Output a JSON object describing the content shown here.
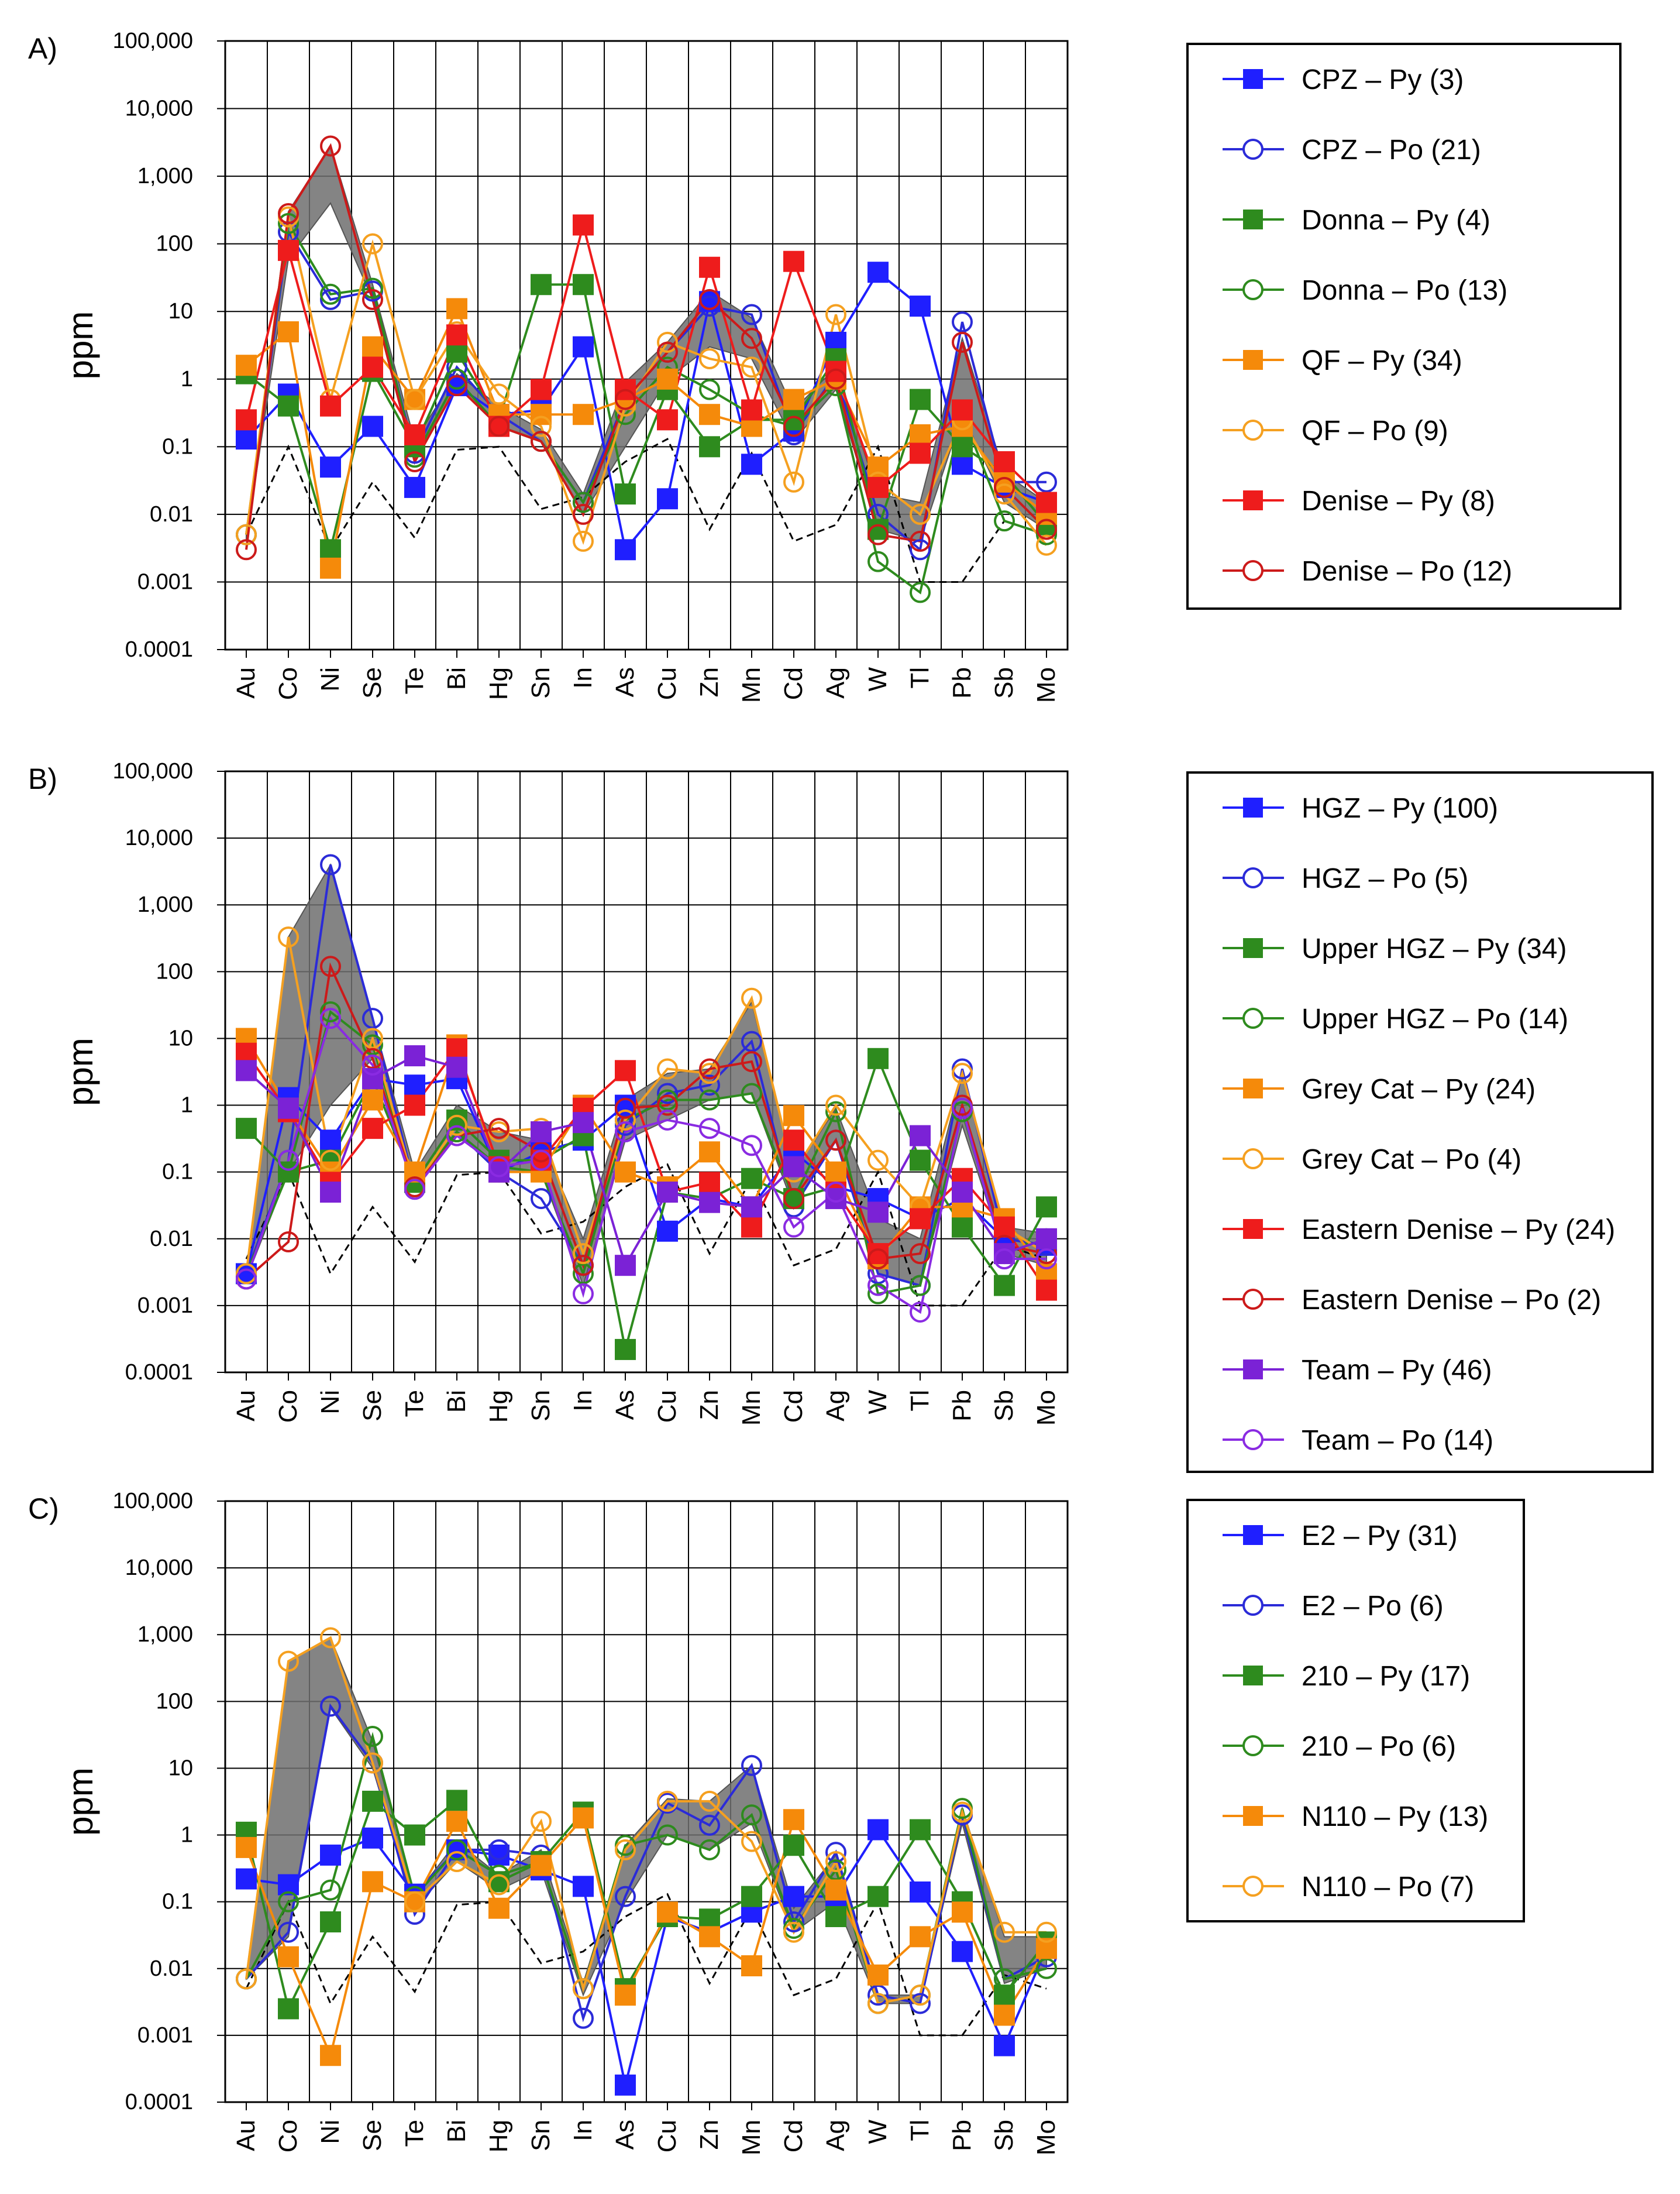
{
  "figure": {
    "elements": [
      "Au",
      "Co",
      "Ni",
      "Se",
      "Te",
      "Bi",
      "Hg",
      "Sn",
      "In",
      "As",
      "Cu",
      "Zn",
      "Mn",
      "Cd",
      "Ag",
      "W",
      "Tl",
      "Pb",
      "Sb",
      "Mo"
    ],
    "ylabel": "ppm",
    "yticks": [
      {
        "v": 100000,
        "label": "100,000"
      },
      {
        "v": 10000,
        "label": "10,000"
      },
      {
        "v": 1000,
        "label": "1,000"
      },
      {
        "v": 100,
        "label": "100"
      },
      {
        "v": 10,
        "label": "10"
      },
      {
        "v": 1,
        "label": "1"
      },
      {
        "v": 0.1,
        "label": "0.1"
      },
      {
        "v": 0.01,
        "label": "0.01"
      },
      {
        "v": 0.001,
        "label": "0.001"
      },
      {
        "v": 0.0001,
        "label": "0.0001"
      }
    ],
    "ylim": [
      0.0001,
      100000
    ],
    "reference_line": [
      0.004,
      0.1,
      0.003,
      0.002,
      0.03,
      0.0045,
      0.09,
      0.1,
      0.012,
      0.018,
      0.06,
      0.0008,
      0.13,
      0.006,
      0.08,
      0.004,
      0.007,
      0.1,
      0.004,
      0.02,
      0.001,
      0.001,
      0.008,
      0.005
    ],
    "reference_line_note": "dashed black line, values per element index (Au..Mo) with intermediate points"
  },
  "chart_data": [
    {
      "type": "line",
      "panel_label": "A)",
      "yscale": "log",
      "categories": [
        "Au",
        "Co",
        "Ni",
        "Se",
        "Te",
        "Bi",
        "Hg",
        "Sn",
        "In",
        "As",
        "Cu",
        "Zn",
        "Mn",
        "Cd",
        "Ag",
        "W",
        "Tl",
        "Pb",
        "Sb",
        "Mo"
      ],
      "reference": [
        0.005,
        0.1,
        0.003,
        0.03,
        0.0045,
        0.09,
        0.1,
        0.012,
        0.018,
        0.06,
        0.13,
        0.006,
        0.08,
        0.004,
        0.007,
        0.1,
        0.001,
        0.001,
        0.008,
        0.005
      ],
      "band": {
        "low": [
          0.004,
          60,
          400,
          15,
          0.06,
          0.8,
          0.2,
          0.12,
          0.01,
          0.1,
          1.0,
          3,
          2,
          0.12,
          0.7,
          0.006,
          0.004,
          0.3,
          0.015,
          0.006
        ],
        "high": [
          0.005,
          300,
          2800,
          25,
          0.12,
          1.2,
          0.4,
          0.18,
          0.02,
          0.9,
          3.5,
          20,
          8,
          0.35,
          1.5,
          0.02,
          0.015,
          4,
          0.04,
          0.015
        ]
      },
      "series": [
        {
          "name": "CPZ – Py (3)",
          "color": "#1f1fff",
          "marker": "square",
          "values": [
            0.13,
            0.6,
            0.05,
            0.2,
            0.025,
            0.8,
            0.3,
            0.35,
            3,
            0.003,
            0.017,
            14,
            0.055,
            0.17,
            3.5,
            38,
            12,
            0.055,
            0.025,
            0.015
          ]
        },
        {
          "name": "CPZ – Po (21)",
          "color": "#2b2bd8",
          "marker": "circle",
          "values": [
            0.005,
            150,
            15,
            20,
            0.08,
            1.5,
            0.3,
            0.12,
            0.015,
            0.5,
            2.5,
            12,
            9,
            0.15,
            1.2,
            0.01,
            0.003,
            7,
            0.03,
            0.03
          ]
        },
        {
          "name": "Donna – Py (4)",
          "color": "#2e8b1e",
          "marker": "square",
          "values": [
            1.2,
            0.4,
            0.003,
            1.3,
            0.1,
            2.5,
            0.25,
            25,
            25,
            0.02,
            0.7,
            0.1,
            0.25,
            0.25,
            2,
            0.006,
            0.5,
            0.1,
            0.04,
            0.007
          ]
        },
        {
          "name": "Donna – Po (13)",
          "color": "#2e8b1e",
          "marker": "circle",
          "values": [
            0.005,
            200,
            18,
            22,
            0.07,
            1.0,
            0.2,
            0.12,
            0.015,
            0.3,
            1.5,
            0.7,
            0.3,
            0.2,
            0.8,
            0.002,
            0.0007,
            0.3,
            0.008,
            0.005
          ]
        },
        {
          "name": "QF – Py (34)",
          "color": "#f58a0a",
          "marker": "square",
          "values": [
            1.6,
            5,
            0.0016,
            3,
            0.5,
            11,
            0.3,
            0.3,
            0.3,
            0.5,
            1.0,
            0.3,
            0.2,
            0.5,
            1.0,
            0.05,
            0.15,
            0.2,
            0.03,
            0.01
          ]
        },
        {
          "name": "QF – Po (9)",
          "color": "#f5a020",
          "marker": "circle",
          "values": [
            0.005,
            250,
            0.5,
            100,
            0.5,
            5,
            0.6,
            0.2,
            0.004,
            0.4,
            3.5,
            2,
            1.5,
            0.03,
            9,
            0.03,
            0.01,
            0.25,
            0.02,
            0.0035
          ]
        },
        {
          "name": "Denise – Py (8)",
          "color": "#ee1c1c",
          "marker": "square",
          "values": [
            0.25,
            80,
            0.4,
            1.5,
            0.15,
            4.5,
            0.2,
            0.7,
            190,
            0.7,
            0.25,
            45,
            0.35,
            55,
            1.3,
            0.025,
            0.08,
            0.35,
            0.06,
            0.015
          ]
        },
        {
          "name": "Denise – Po (12)",
          "color": "#cc1a1a",
          "marker": "circle",
          "values": [
            0.003,
            280,
            2800,
            15,
            0.06,
            0.8,
            0.2,
            0.12,
            0.01,
            0.5,
            2.5,
            15,
            4,
            0.2,
            1.0,
            0.005,
            0.004,
            3.5,
            0.025,
            0.006
          ]
        }
      ]
    },
    {
      "type": "line",
      "panel_label": "B)",
      "yscale": "log",
      "categories": [
        "Au",
        "Co",
        "Ni",
        "Se",
        "Te",
        "Bi",
        "Hg",
        "Sn",
        "In",
        "As",
        "Cu",
        "Zn",
        "Mn",
        "Cd",
        "Ag",
        "W",
        "Tl",
        "Pb",
        "Sb",
        "Mo"
      ],
      "reference": [
        0.005,
        0.1,
        0.003,
        0.03,
        0.0045,
        0.09,
        0.1,
        0.012,
        0.018,
        0.06,
        0.13,
        0.006,
        0.08,
        0.004,
        0.007,
        0.1,
        0.001,
        0.001,
        0.008,
        0.005
      ],
      "band": {
        "low": [
          0.0025,
          0.1,
          1,
          5,
          0.06,
          0.4,
          0.1,
          0.1,
          0.002,
          0.3,
          0.6,
          1.2,
          1.5,
          0.03,
          0.3,
          0.003,
          0.002,
          0.5,
          0.006,
          0.004
        ],
        "high": [
          0.003,
          330,
          4000,
          20,
          0.1,
          1.0,
          0.4,
          0.3,
          0.01,
          1.2,
          3.0,
          3.5,
          35,
          0.1,
          0.9,
          0.02,
          0.01,
          3,
          0.015,
          0.012
        ]
      },
      "series": [
        {
          "name": "HGZ – Py (100)",
          "color": "#1f1fff",
          "marker": "square",
          "values": [
            0.003,
            1.3,
            0.3,
            2.5,
            2,
            2.5,
            0.1,
            0.2,
            0.3,
            1.0,
            0.013,
            0.04,
            0.03,
            0.2,
            0.06,
            0.04,
            0.02,
            0.04,
            0.01,
            0.008
          ]
        },
        {
          "name": "HGZ – Po (5)",
          "color": "#2b2bd8",
          "marker": "circle",
          "values": [
            0.003,
            0.15,
            4000,
            20,
            0.06,
            0.4,
            0.1,
            0.04,
            0.004,
            0.5,
            1.5,
            2,
            9,
            0.03,
            0.3,
            0.003,
            0.002,
            3.5,
            0.01,
            0.008
          ]
        },
        {
          "name": "Upper HGZ – Py (34)",
          "color": "#2e8b1e",
          "marker": "square",
          "values": [
            0.45,
            0.1,
            0.15,
            2.5,
            0.07,
            0.6,
            0.15,
            0.15,
            0.35,
            0.00022,
            0.05,
            0.04,
            0.08,
            0.04,
            0.06,
            5,
            0.15,
            0.015,
            0.002,
            0.03
          ]
        },
        {
          "name": "Upper HGZ – Po (14)",
          "color": "#2e8b1e",
          "marker": "circle",
          "values": [
            0.003,
            0.1,
            25,
            8,
            0.06,
            0.4,
            0.12,
            0.1,
            0.003,
            0.6,
            1.2,
            1.2,
            1.5,
            0.04,
            0.8,
            0.0015,
            0.002,
            0.8,
            0.006,
            0.01
          ]
        },
        {
          "name": "Grey Cat – Py (24)",
          "color": "#f58a0a",
          "marker": "square",
          "values": [
            10,
            0.9,
            0.1,
            1.2,
            0.1,
            8,
            0.1,
            0.1,
            1,
            0.1,
            0.06,
            0.2,
            0.03,
            0.7,
            0.1,
            0.005,
            0.03,
            0.03,
            0.02,
            0.003
          ]
        },
        {
          "name": "Grey Cat – Po (4)",
          "color": "#f5a020",
          "marker": "circle",
          "values": [
            0.003,
            330,
            0.15,
            10,
            0.06,
            0.5,
            0.4,
            0.45,
            0.006,
            0.6,
            3.5,
            3,
            40,
            0.1,
            1,
            0.15,
            0.03,
            3,
            0.015,
            0.006
          ]
        },
        {
          "name": "Eastern Denise – Py (24)",
          "color": "#ee1c1c",
          "marker": "square",
          "values": [
            6,
            0.8,
            0.07,
            0.45,
            1,
            7,
            0.12,
            0.15,
            0.9,
            3.3,
            0.05,
            0.07,
            0.015,
            0.3,
            0.05,
            0.006,
            0.02,
            0.08,
            0.015,
            0.0017
          ]
        },
        {
          "name": "Eastern Denise – Po (2)",
          "color": "#cc1a1a",
          "marker": "circle",
          "values": [
            0.0025,
            0.009,
            120,
            5,
            0.06,
            0.35,
            0.45,
            0.2,
            0.004,
            0.9,
            1,
            3.5,
            4.5,
            0.04,
            0.3,
            0.005,
            0.006,
            1,
            0.008,
            0.006
          ]
        },
        {
          "name": "Team – Py (46)",
          "color": "#7b22d6",
          "marker": "square",
          "values": [
            3.3,
            0.9,
            0.05,
            2.5,
            5.5,
            3.7,
            0.1,
            0.4,
            0.55,
            0.004,
            0.05,
            0.035,
            0.03,
            0.12,
            0.04,
            0.025,
            0.35,
            0.05,
            0.006,
            0.01
          ]
        },
        {
          "name": "Team – Po (14)",
          "color": "#8a2be2",
          "marker": "circle",
          "values": [
            0.0025,
            0.15,
            20,
            4,
            0.055,
            0.35,
            0.12,
            0.15,
            0.0015,
            0.4,
            0.6,
            0.45,
            0.25,
            0.015,
            0.05,
            0.002,
            0.0008,
            0.9,
            0.005,
            0.005
          ]
        }
      ]
    },
    {
      "type": "line",
      "panel_label": "C)",
      "yscale": "log",
      "categories": [
        "Au",
        "Co",
        "Ni",
        "Se",
        "Te",
        "Bi",
        "Hg",
        "Sn",
        "In",
        "As",
        "Cu",
        "Zn",
        "Mn",
        "Cd",
        "Ag",
        "W",
        "Tl",
        "Pb",
        "Sb",
        "Mo"
      ],
      "reference": [
        0.005,
        0.1,
        0.003,
        0.03,
        0.0045,
        0.09,
        0.1,
        0.012,
        0.018,
        0.06,
        0.13,
        0.006,
        0.08,
        0.004,
        0.007,
        0.1,
        0.001,
        0.001,
        0.008,
        0.005
      ],
      "band": {
        "low": [
          0.007,
          0.03,
          80,
          10,
          0.08,
          0.4,
          0.15,
          0.3,
          0.004,
          0.1,
          1.0,
          0.6,
          1.5,
          0.035,
          0.1,
          0.003,
          0.003,
          1.5,
          0.006,
          0.01
        ],
        "high": [
          0.008,
          400,
          900,
          25,
          0.12,
          0.8,
          0.25,
          0.6,
          0.006,
          0.7,
          3.5,
          3.2,
          11,
          0.08,
          0.5,
          0.004,
          0.004,
          2.5,
          0.03,
          0.03
        ]
      },
      "series": [
        {
          "name": "E2 – Py (31)",
          "color": "#1f1fff",
          "marker": "square",
          "values": [
            0.22,
            0.18,
            0.5,
            0.9,
            0.13,
            0.6,
            0.5,
            0.3,
            0.17,
            0.00018,
            0.06,
            0.035,
            0.07,
            0.12,
            0.12,
            1.2,
            0.14,
            0.018,
            0.0007,
            0.02
          ]
        },
        {
          "name": "E2 – Po (6)",
          "color": "#2b2bd8",
          "marker": "circle",
          "values": [
            0.007,
            0.035,
            85,
            12,
            0.065,
            0.6,
            0.6,
            0.5,
            0.0018,
            0.12,
            3,
            1.4,
            11,
            0.05,
            0.55,
            0.004,
            0.003,
            2,
            0.007,
            0.015
          ]
        },
        {
          "name": "210 – Py (17)",
          "color": "#2e8b1e",
          "marker": "square",
          "values": [
            1.1,
            0.0025,
            0.05,
            3.2,
            1,
            3.3,
            0.2,
            0.4,
            2.2,
            0.005,
            0.06,
            0.055,
            0.12,
            0.7,
            0.06,
            0.12,
            1.2,
            0.1,
            0.004,
            0.025
          ]
        },
        {
          "name": "210 – Po (6)",
          "color": "#2e8b1e",
          "marker": "circle",
          "values": [
            0.007,
            0.1,
            0.15,
            30,
            0.12,
            0.6,
            0.25,
            0.4,
            0.005,
            0.7,
            1.0,
            0.6,
            2,
            0.04,
            0.3,
            0.003,
            0.004,
            2.5,
            0.007,
            0.01
          ]
        },
        {
          "name": "N110 – Py (13)",
          "color": "#f58a0a",
          "marker": "square",
          "values": [
            0.65,
            0.015,
            0.0005,
            0.2,
            0.1,
            1.6,
            0.08,
            0.35,
            1.8,
            0.004,
            0.07,
            0.03,
            0.011,
            1.7,
            0.15,
            0.008,
            0.03,
            0.07,
            0.002,
            0.02
          ]
        },
        {
          "name": "N110 – Po (7)",
          "color": "#f5a020",
          "marker": "circle",
          "values": [
            0.007,
            400,
            900,
            12,
            0.1,
            0.4,
            0.18,
            1.6,
            0.005,
            0.6,
            3.2,
            3.2,
            0.8,
            0.035,
            0.4,
            0.003,
            0.004,
            2.2,
            0.035,
            0.035
          ]
        }
      ]
    }
  ]
}
